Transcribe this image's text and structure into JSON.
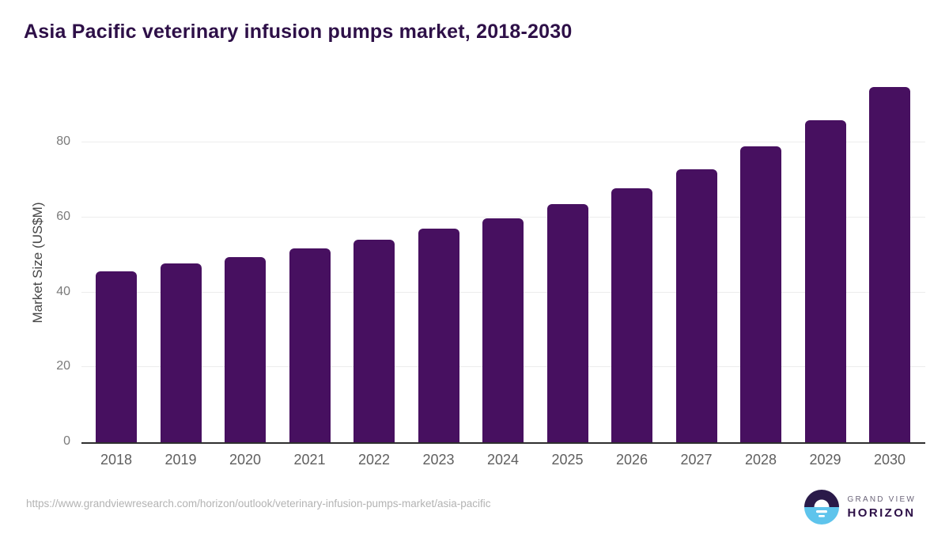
{
  "header": {
    "title": "Asia Pacific veterinary infusion pumps market, 2018-2030"
  },
  "chart_data": {
    "type": "bar",
    "title": "Asia Pacific veterinary infusion pumps market, 2018-2030",
    "xlabel": "",
    "ylabel": "Market Size (US$M)",
    "categories": [
      "2018",
      "2019",
      "2020",
      "2021",
      "2022",
      "2023",
      "2024",
      "2025",
      "2026",
      "2027",
      "2028",
      "2029",
      "2030"
    ],
    "values": [
      45.5,
      47.7,
      49.3,
      51.7,
      54.1,
      56.9,
      59.8,
      63.5,
      67.8,
      72.8,
      78.9,
      86.0,
      94.7
    ],
    "yticks": [
      0,
      20,
      40,
      60,
      80
    ],
    "ylim": [
      0,
      96.9
    ],
    "grid": true,
    "legend": false,
    "bar_color": "#471060"
  },
  "footer": {
    "source_url": "https://www.grandviewresearch.com/horizon/outlook/veterinary-infusion-pumps-market/asia-pacific",
    "logo": {
      "top_text": "GRAND VIEW",
      "bottom_text": "HORIZON",
      "dark_color": "#2a1a49",
      "blue_color": "#5ec4ec"
    }
  }
}
